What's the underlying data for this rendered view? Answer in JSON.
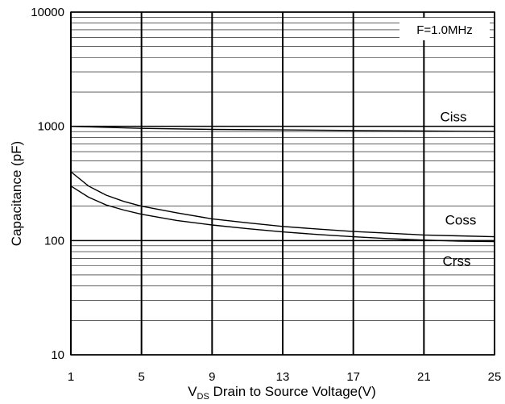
{
  "chart_data": {
    "type": "line",
    "title": "",
    "annotation": "F=1.0MHz",
    "xlabel_main": "V",
    "xlabel_sub": "DS",
    "xlabel_rest": " Drain to Source Voltage(V)",
    "ylabel": "Capacitance (pF)",
    "xlim": [
      1,
      25
    ],
    "ylim": [
      10,
      10000
    ],
    "yscale": "log",
    "grid": true,
    "x_ticks": [
      1,
      5,
      9,
      13,
      17,
      21,
      25
    ],
    "x_tick_labels": [
      "1",
      "5",
      "9",
      "13",
      "17",
      "21",
      "25"
    ],
    "y_ticks": [
      10,
      100,
      1000,
      10000
    ],
    "y_tick_labels": [
      "10",
      "100",
      "1000",
      "10000"
    ],
    "series": [
      {
        "name": "Ciss",
        "x": [
          1,
          3,
          5,
          9,
          13,
          17,
          21,
          25
        ],
        "values": [
          1000,
          980,
          960,
          940,
          930,
          920,
          910,
          900
        ]
      },
      {
        "name": "Coss",
        "x": [
          1,
          2,
          3,
          4,
          5,
          7,
          9,
          11,
          13,
          15,
          17,
          19,
          21,
          23,
          25
        ],
        "values": [
          400,
          300,
          250,
          220,
          200,
          175,
          155,
          143,
          133,
          126,
          120,
          116,
          112,
          110,
          108
        ]
      },
      {
        "name": "Crss",
        "x": [
          1,
          2,
          3,
          4,
          5,
          7,
          9,
          11,
          13,
          15,
          17,
          19,
          21,
          23,
          25
        ],
        "values": [
          300,
          240,
          205,
          185,
          170,
          150,
          137,
          127,
          119,
          113,
          108,
          104,
          101,
          99,
          98
        ]
      }
    ]
  }
}
